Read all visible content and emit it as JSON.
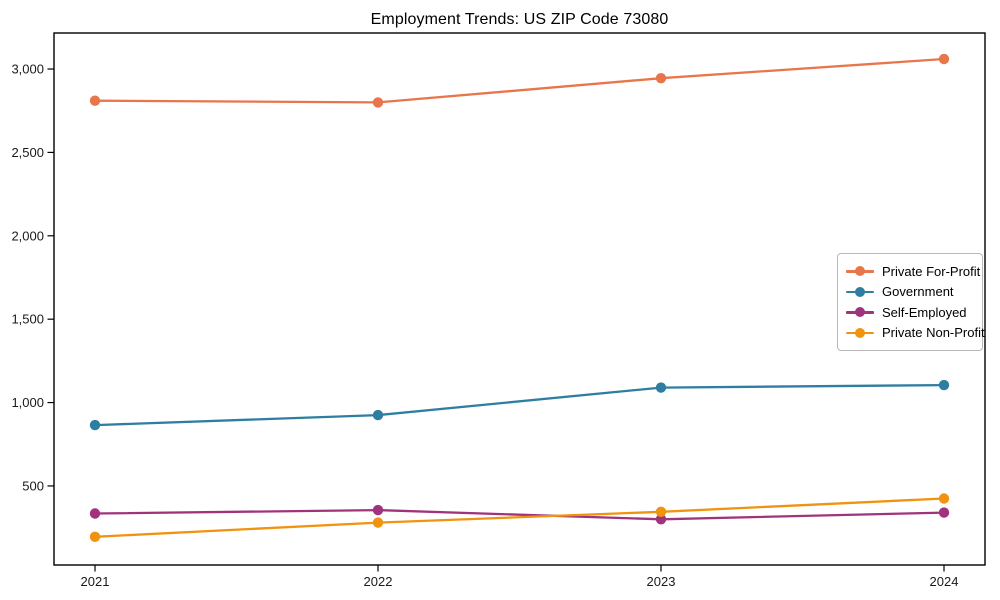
{
  "chart_data": {
    "type": "line",
    "title": "Employment Trends: US ZIP Code 73080",
    "x": [
      2021,
      2022,
      2023,
      2024
    ],
    "xtick_labels": [
      "2021",
      "2022",
      "2023",
      "2024"
    ],
    "yticks": [
      500,
      1000,
      1500,
      2000,
      2500,
      3000
    ],
    "ytick_labels": [
      "500",
      "1,000",
      "1,500",
      "2,000",
      "2,500",
      "3,000"
    ],
    "ylim": [
      26,
      3216
    ],
    "grid": false,
    "legend_position": "center right",
    "marker": "circle",
    "series": [
      {
        "name": "Private For-Profit",
        "color": "#E8764B",
        "values": [
          2810,
          2800,
          2945,
          3060
        ]
      },
      {
        "name": "Government",
        "color": "#2E7EA1",
        "values": [
          865,
          925,
          1090,
          1105
        ]
      },
      {
        "name": "Self-Employed",
        "color": "#A0347C",
        "values": [
          335,
          355,
          300,
          340
        ]
      },
      {
        "name": "Private Non-Profit",
        "color": "#F0940F",
        "values": [
          195,
          280,
          345,
          425
        ]
      }
    ],
    "colors": {
      "background": "#ffffff",
      "spine": "#000000",
      "text": "#1a1a1a",
      "legend_border": "#b9b9b9"
    }
  }
}
